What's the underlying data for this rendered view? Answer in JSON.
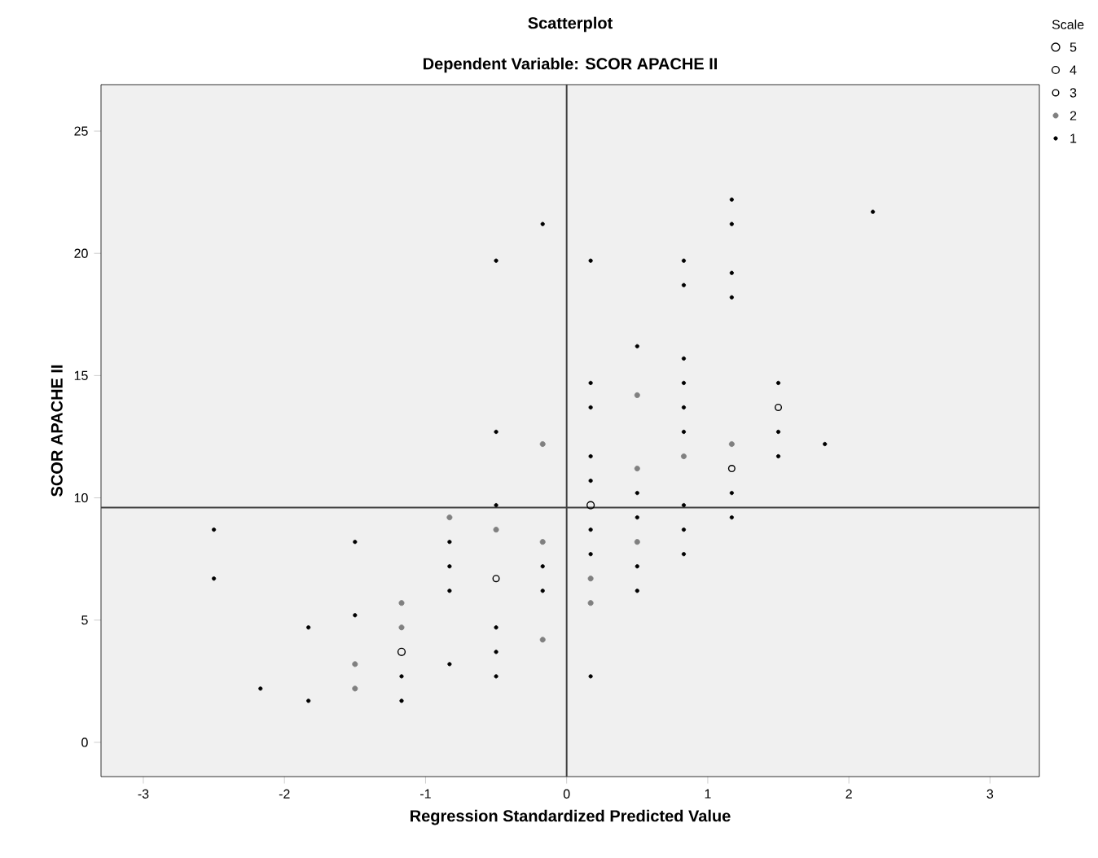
{
  "chart_data": {
    "type": "bubble",
    "title": "Scatterplot",
    "subtitle": "Dependent Variable: SCOR APACHE II",
    "xlabel": "Regression Standardized Predicted Value",
    "ylabel": "SCOR APACHE II",
    "legend_title": "Scale",
    "xlim": [
      -3.3,
      3.35
    ],
    "ylim": [
      -1.4,
      26.9
    ],
    "xticks": [
      -3,
      -2,
      -1,
      0,
      1,
      2,
      3
    ],
    "yticks": [
      0,
      5,
      10,
      15,
      20,
      25
    ],
    "size_legend": [
      5,
      4,
      3,
      2,
      1
    ],
    "grid": false,
    "ref_lines": [
      {
        "axis": "x",
        "value": 0,
        "color": "#404040"
      },
      {
        "axis": "y",
        "value": 9.6,
        "color": "#404040"
      }
    ],
    "series": [
      {
        "colors": [
          "#000000",
          "#000000",
          "#000000",
          "#000000",
          "#000000",
          "#000000",
          "#000000",
          "#808080",
          "#808080",
          "#808080",
          "#808080",
          "#000000",
          "#000000",
          "#000000",
          "#808080",
          "#000000",
          "#000000",
          "#000000",
          "#000000",
          "#000000",
          "#000000",
          "#000000",
          "#808080",
          "#000000",
          "#000000",
          "#000000",
          "#000000",
          "#000000",
          "#808080",
          "#808080",
          "#000000",
          "#000000",
          "#808080",
          "#000000",
          "#000000",
          "#000000",
          "#000000",
          "#000000",
          "#000000",
          "#000000",
          "#000000",
          "#808080",
          "#808080",
          "#000000",
          "#000000",
          "#808080",
          "#808080",
          "#000000",
          "#000000",
          "#808080",
          "#000000",
          "#000000",
          "#000000",
          "#000000",
          "#000000",
          "#000000",
          "#000000",
          "#000000",
          "#808080",
          "#000000",
          "#000000",
          "#000000",
          "#000000",
          "#000000",
          "#000000",
          "#000000",
          "#808080",
          "#000000",
          "#000000",
          "#000000",
          "#000000",
          "#000000",
          "#000000",
          "#000000",
          "#000000",
          "#000000"
        ],
        "x": [
          -2.5,
          -2.5,
          -2.17,
          -1.83,
          -1.83,
          -1.5,
          -1.5,
          -1.5,
          -1.5,
          -1.17,
          -1.17,
          -1.17,
          -1.17,
          -1.17,
          -0.83,
          -0.83,
          -0.83,
          -0.83,
          -0.83,
          -0.5,
          -0.5,
          -0.5,
          -0.5,
          -0.5,
          -0.5,
          -0.5,
          -0.5,
          -0.17,
          -0.17,
          -0.17,
          -0.17,
          -0.17,
          -0.17,
          0.17,
          0.17,
          0.17,
          0.17,
          0.17,
          0.17,
          0.17,
          0.17,
          0.17,
          0.17,
          0.17,
          0.5,
          0.5,
          0.5,
          0.5,
          0.5,
          0.5,
          0.5,
          0.5,
          0.83,
          0.83,
          0.83,
          0.83,
          0.83,
          0.83,
          0.83,
          0.83,
          0.83,
          0.83,
          1.17,
          1.17,
          1.17,
          1.17,
          1.17,
          1.17,
          1.17,
          1.17,
          1.5,
          1.5,
          1.5,
          1.5,
          1.83,
          2.17
        ],
        "values": [
          8.7,
          6.7,
          2.2,
          4.7,
          1.7,
          8.2,
          5.2,
          3.2,
          2.2,
          5.7,
          4.7,
          3.7,
          2.7,
          1.7,
          9.2,
          8.2,
          7.2,
          6.2,
          3.2,
          19.7,
          12.7,
          9.7,
          8.7,
          6.7,
          4.7,
          3.7,
          2.7,
          21.2,
          12.2,
          8.2,
          7.2,
          6.2,
          4.2,
          19.7,
          14.7,
          13.7,
          11.7,
          10.7,
          9.7,
          8.7,
          7.7,
          6.7,
          5.7,
          2.7,
          16.2,
          14.2,
          11.2,
          10.2,
          9.2,
          8.2,
          7.2,
          6.2,
          19.7,
          18.7,
          15.7,
          14.7,
          13.7,
          12.7,
          11.7,
          9.7,
          8.7,
          7.7,
          22.2,
          21.2,
          19.2,
          18.2,
          12.2,
          11.2,
          10.2,
          9.2,
          14.7,
          13.7,
          12.7,
          11.7,
          12.2,
          21.7
        ],
        "sizes": [
          1,
          1,
          1,
          1,
          1,
          1,
          1,
          2,
          2,
          2,
          2,
          4,
          1,
          1,
          2,
          1,
          1,
          1,
          1,
          1,
          1,
          1,
          2,
          3,
          1,
          1,
          1,
          1,
          2,
          2,
          1,
          1,
          2,
          1,
          1,
          1,
          1,
          1,
          4,
          1,
          1,
          2,
          2,
          1,
          1,
          2,
          2,
          1,
          1,
          2,
          1,
          1,
          1,
          1,
          1,
          1,
          1,
          1,
          2,
          1,
          1,
          1,
          1,
          1,
          1,
          1,
          2,
          3,
          1,
          1,
          1,
          3,
          1,
          1,
          1,
          1
        ]
      }
    ]
  }
}
